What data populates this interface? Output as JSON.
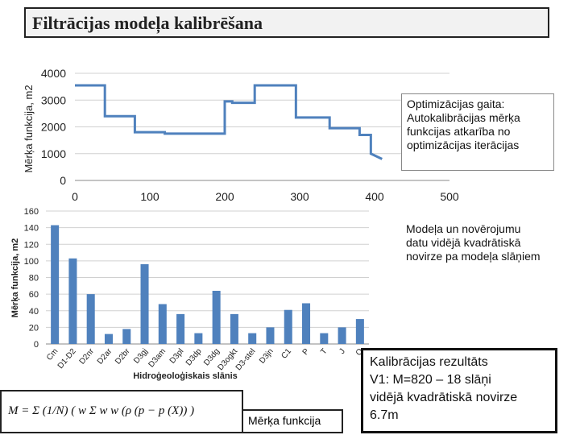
{
  "page": {
    "title": "Filtrācijas modeļa kalibrēšana"
  },
  "chart_data": [
    {
      "type": "line",
      "ylabel": "Mērķa funkcija, m2",
      "xlabel": "",
      "xlim": [
        0,
        500
      ],
      "ylim": [
        0,
        4000
      ],
      "xticks": [
        0,
        100,
        200,
        300,
        400,
        500
      ],
      "yticks": [
        0,
        1000,
        2000,
        3000,
        4000
      ],
      "grid": true,
      "color": "#4f81bd",
      "x": [
        0,
        40,
        40,
        80,
        80,
        120,
        120,
        200,
        200,
        210,
        210,
        240,
        240,
        295,
        295,
        340,
        340,
        380,
        380,
        395,
        395,
        410
      ],
      "y": [
        3550,
        3550,
        2400,
        2400,
        1800,
        1800,
        1750,
        1750,
        2950,
        2950,
        2900,
        2900,
        3550,
        3550,
        2350,
        2350,
        1950,
        1950,
        1700,
        1700,
        1000,
        800
      ]
    },
    {
      "type": "bar",
      "ylabel": "Mērķa funkcija, m2",
      "xlabel": "Hidroģeoloģiskais slānis",
      "ylim": [
        0,
        160
      ],
      "yticks": [
        0,
        20,
        40,
        60,
        80,
        100,
        120,
        140,
        160
      ],
      "grid": true,
      "color": "#4f81bd",
      "categories": [
        "Cm",
        "D1-D2",
        "D2nr",
        "D2ar",
        "D2br",
        "D3gj",
        "D3am",
        "D3pl",
        "D3dp",
        "D3dg",
        "D3ogkt",
        "D3-stel",
        "D3jn",
        "C1",
        "P",
        "T",
        "J",
        "Q"
      ],
      "values": [
        143,
        103,
        60,
        12,
        18,
        96,
        48,
        36,
        13,
        64,
        36,
        13,
        20,
        41,
        49,
        13,
        20,
        30
      ]
    }
  ],
  "callouts": {
    "top": "Optimizācijas gaita: Autokalibrācijas mērķa funkcijas atkarība no optimizācijas iterācijas",
    "mid": "Modeļa un novērojumu datu vidējā kvadrātiskā novirze pa modeļa slāņiem",
    "bottom_l1": "Kalibrācijas rezultāts",
    "bottom_l2": "V1: M=820 – 18 slāņi",
    "bottom_l3": "vidējā kvadrātiskā novirze",
    "bottom_l4": "6.7m"
  },
  "formula": {
    "text": "M = Σ (1/N) ( w Σ w w (ρ (p − p (X)) )",
    "label": "Mērķa funkcija"
  }
}
